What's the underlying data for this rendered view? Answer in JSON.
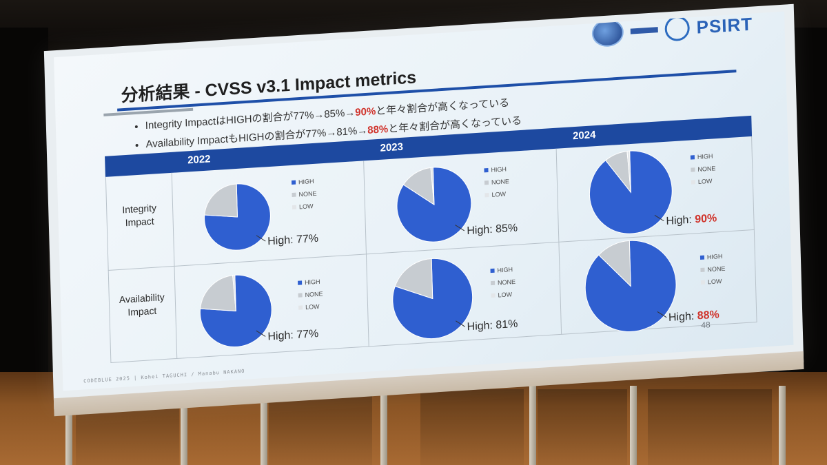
{
  "slide": {
    "title": "分析結果 - CVSS v3.1 Impact metrics",
    "logo_text": "PSIRT",
    "bullets": [
      {
        "prefix": "Integrity ImpactはHIGHの割合が77%→85%→",
        "highlight": "90%",
        "suffix": "と年々割合が高くなっている"
      },
      {
        "prefix": "Availability ImpactもHIGHの割合が77%→81%→",
        "highlight": "88%",
        "suffix": "と年々割合が高くなっている"
      }
    ],
    "years": [
      "2022",
      "2023",
      "2024"
    ],
    "rows": [
      {
        "label_line1": "Integrity",
        "label_line2": "Impact"
      },
      {
        "label_line1": "Availability",
        "label_line2": "Impact"
      }
    ],
    "legend": [
      "HIGH",
      "NONE",
      "LOW"
    ],
    "high_labels": [
      [
        "High: 77%",
        "High: 85%",
        "High: 90%"
      ],
      [
        "High: 77%",
        "High: 81%",
        "High: 88%"
      ]
    ],
    "footer": "CODEBLUE 2025 | Kohei TAGUCHI / Manabu NAKANO",
    "page_number": "48"
  },
  "colors": {
    "high": "#2f5fd0",
    "none": "#c7ccd1",
    "low": "#e3e6e9",
    "header_band": "#1d49a0",
    "highlight_red": "#d0342c"
  },
  "chart_data": [
    {
      "type": "pie",
      "row": "Integrity Impact",
      "year": "2022",
      "categories": [
        "HIGH",
        "NONE",
        "LOW"
      ],
      "values": [
        77,
        23,
        0
      ]
    },
    {
      "type": "pie",
      "row": "Integrity Impact",
      "year": "2023",
      "categories": [
        "HIGH",
        "NONE",
        "LOW"
      ],
      "values": [
        85,
        14,
        1
      ]
    },
    {
      "type": "pie",
      "row": "Integrity Impact",
      "year": "2024",
      "categories": [
        "HIGH",
        "NONE",
        "LOW"
      ],
      "values": [
        90,
        9,
        1
      ]
    },
    {
      "type": "pie",
      "row": "Availability Impact",
      "year": "2022",
      "categories": [
        "HIGH",
        "NONE",
        "LOW"
      ],
      "values": [
        77,
        22,
        1
      ]
    },
    {
      "type": "pie",
      "row": "Availability Impact",
      "year": "2023",
      "categories": [
        "HIGH",
        "NONE",
        "LOW"
      ],
      "values": [
        81,
        19,
        0
      ]
    },
    {
      "type": "pie",
      "row": "Availability Impact",
      "year": "2024",
      "categories": [
        "HIGH",
        "NONE",
        "LOW"
      ],
      "values": [
        88,
        12,
        0
      ]
    }
  ]
}
